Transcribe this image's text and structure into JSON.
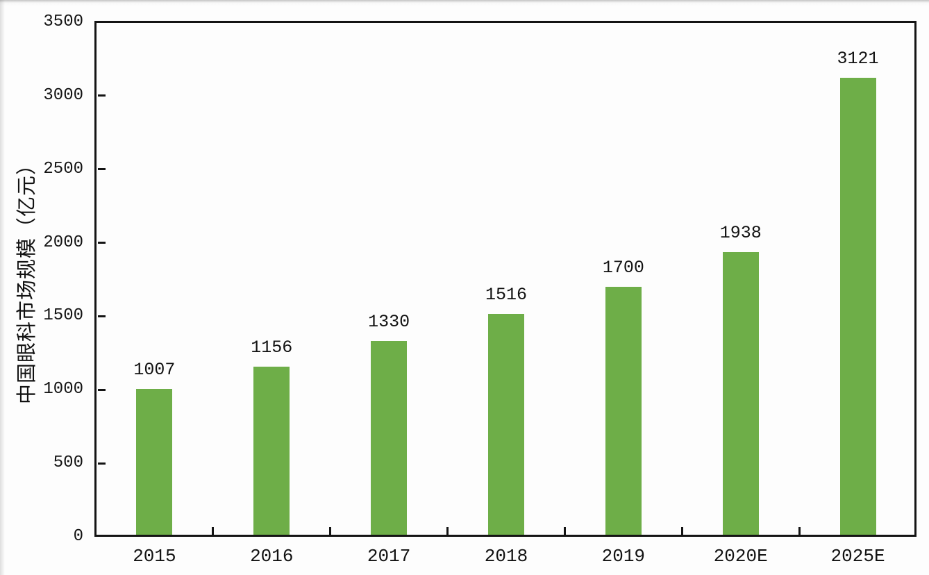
{
  "chart_data": {
    "type": "bar",
    "title": "",
    "y_axis_title": "中国眼科市场规模（亿元）",
    "categories": [
      "2015",
      "2016",
      "2017",
      "2018",
      "2019",
      "2020E",
      "2025E"
    ],
    "values": [
      1007,
      1156,
      1330,
      1516,
      1700,
      1938,
      3121
    ],
    "value_labels": [
      "1007",
      "1156",
      "1330",
      "1516",
      "1700",
      "1938",
      "3121"
    ],
    "y_ticks": [
      0,
      500,
      1000,
      1500,
      2000,
      2500,
      3000,
      3500
    ],
    "y_tick_labels": [
      "0",
      "500",
      "1000",
      "1500",
      "2000",
      "2500",
      "3000",
      "3500"
    ],
    "ylim": [
      0,
      3500
    ],
    "grid": "off",
    "legend": "none",
    "bar_color": "#6EAE48",
    "axis_color": "#141414",
    "label_color": "#121212",
    "background_color": "#fdfdfd"
  }
}
